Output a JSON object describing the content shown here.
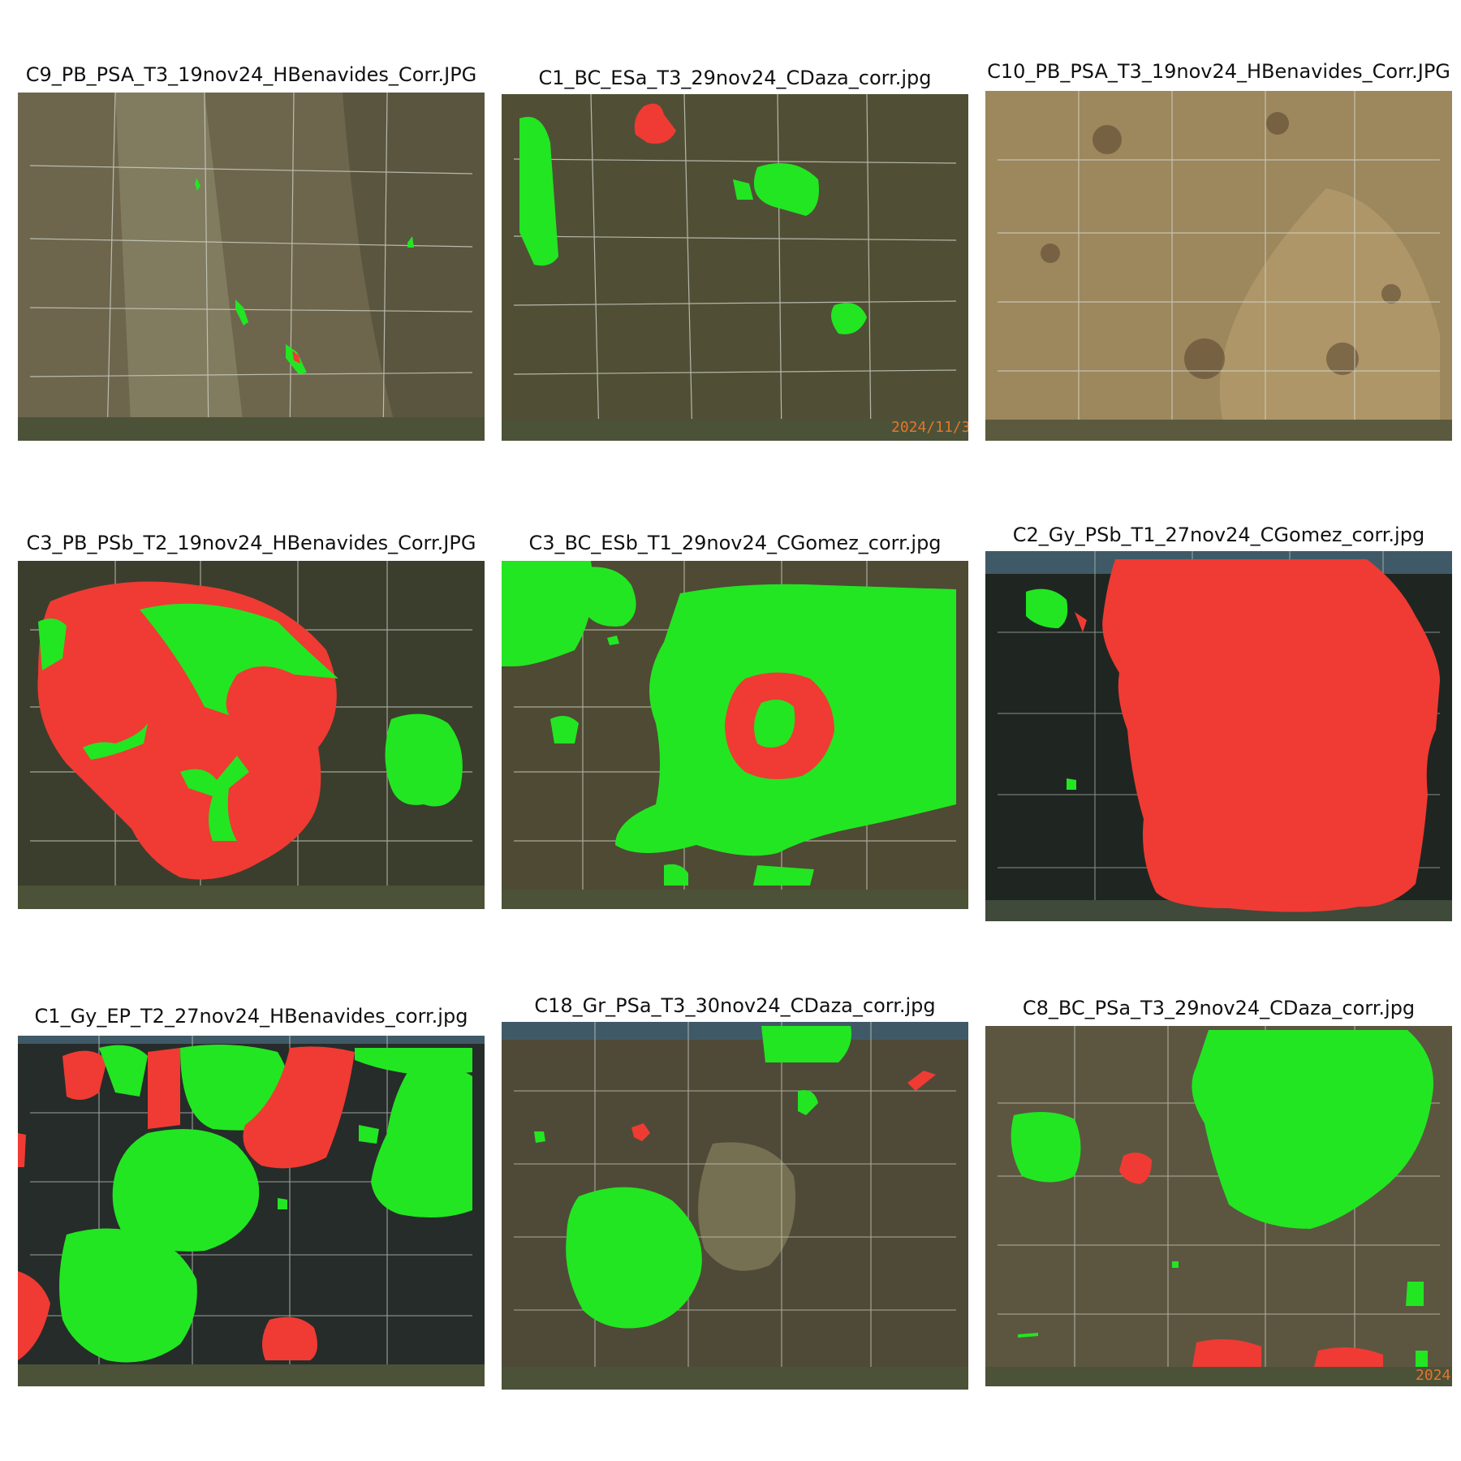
{
  "panels": [
    {
      "title": "C9_PB_PSA_T3_19nov24_HBenavides_Corr.JPG"
    },
    {
      "title": "C1_BC_ESa_T3_29nov24_CDaza_corr.jpg",
      "stamp": "2024/11/3"
    },
    {
      "title": "C10_PB_PSA_T3_19nov24_HBenavides_Corr.JPG"
    },
    {
      "title": "C3_PB_PSb_T2_19nov24_HBenavides_Corr.JPG"
    },
    {
      "title": "C3_BC_ESb_T1_29nov24_CGomez_corr.jpg"
    },
    {
      "title": "C2_Gy_PSb_T1_27nov24_CGomez_corr.jpg"
    },
    {
      "title": "C1_Gy_EP_T2_27nov24_HBenavides_corr.jpg"
    },
    {
      "title": "C18_Gr_PSa_T3_30nov24_CDaza_corr.jpg"
    },
    {
      "title": "C8_BC_PSa_T3_29nov24_CDaza_corr.jpg",
      "stamp": "2024"
    }
  ],
  "colors": {
    "mask_green": "#22e622",
    "mask_red": "#ef3b33"
  }
}
